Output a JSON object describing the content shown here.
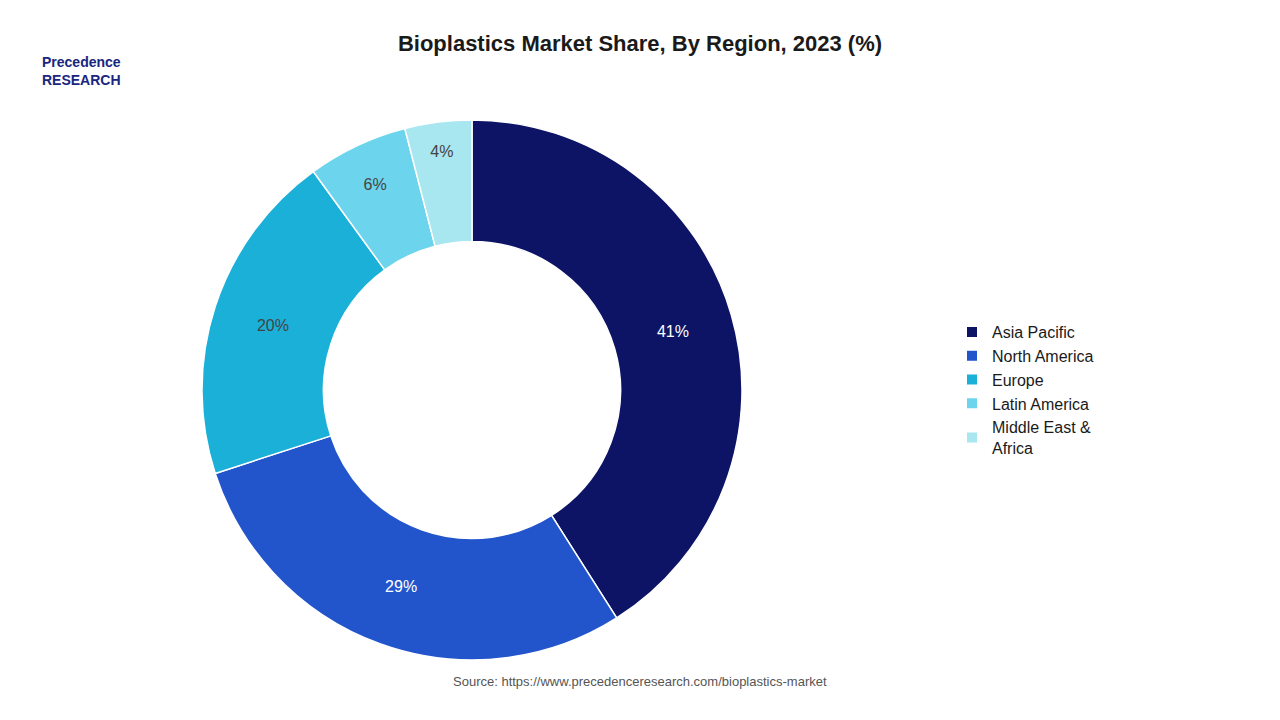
{
  "chart_data": {
    "type": "pie",
    "title": "Bioplastics Market Share, By Region, 2023 (%)",
    "categories": [
      "Asia Pacific",
      "North America",
      "Europe",
      "Latin America",
      "Middle East &\nAfrica"
    ],
    "values": [
      41,
      29,
      20,
      6,
      4
    ],
    "value_labels": [
      "41%",
      "29%",
      "20%",
      "6%",
      "4%"
    ],
    "colors": [
      "#0d1466",
      "#2255cc",
      "#1ab0d8",
      "#6dd4ed",
      "#a8e6f0"
    ],
    "data_labels": true,
    "legend": "right",
    "annotations": [
      "Precedence\nRESEARCH",
      "Source: https://www.precedenceresearch.com/bioplastics-market"
    ]
  }
}
